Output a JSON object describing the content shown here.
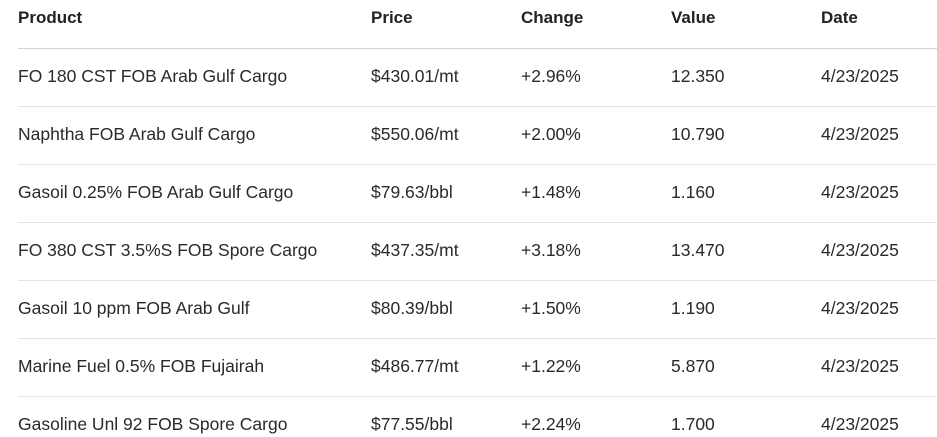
{
  "headers": {
    "product": "Product",
    "price": "Price",
    "change": "Change",
    "value": "Value",
    "date": "Date"
  },
  "rows": [
    {
      "product": "FO 180 CST FOB Arab Gulf Cargo",
      "price": "$430.01/mt",
      "change": "+2.96%",
      "value": "12.350",
      "date": "4/23/2025"
    },
    {
      "product": "Naphtha FOB Arab Gulf Cargo",
      "price": "$550.06/mt",
      "change": "+2.00%",
      "value": "10.790",
      "date": "4/23/2025"
    },
    {
      "product": "Gasoil 0.25% FOB Arab Gulf Cargo",
      "price": "$79.63/bbl",
      "change": "+1.48%",
      "value": "1.160",
      "date": "4/23/2025"
    },
    {
      "product": "FO 380 CST 3.5%S FOB Spore Cargo",
      "price": "$437.35/mt",
      "change": "+3.18%",
      "value": "13.470",
      "date": "4/23/2025"
    },
    {
      "product": "Gasoil 10 ppm FOB Arab Gulf",
      "price": "$80.39/bbl",
      "change": "+1.50%",
      "value": "1.190",
      "date": "4/23/2025"
    },
    {
      "product": "Marine Fuel 0.5% FOB Fujairah",
      "price": "$486.77/mt",
      "change": "+1.22%",
      "value": "5.870",
      "date": "4/23/2025"
    },
    {
      "product": "Gasoline Unl 92 FOB Spore Cargo",
      "price": "$77.55/bbl",
      "change": "+2.24%",
      "value": "1.700",
      "date": "4/23/2025"
    }
  ]
}
